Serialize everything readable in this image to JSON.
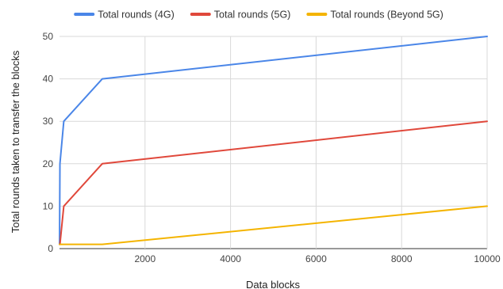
{
  "chart_data": {
    "type": "line",
    "title": "",
    "xlabel": "Data blocks",
    "ylabel": "Total rounds taken to transfer the blocks",
    "xlim": [
      0,
      10000
    ],
    "ylim": [
      0,
      50
    ],
    "x_ticks": [
      2000,
      4000,
      6000,
      8000,
      10000
    ],
    "y_ticks": [
      0,
      10,
      20,
      30,
      40,
      50
    ],
    "grid": true,
    "legend_position": "top",
    "series": [
      {
        "name": "Total rounds (4G)",
        "color": "#4a86e8",
        "x": [
          1,
          10,
          100,
          1000,
          10000
        ],
        "y": [
          1,
          20,
          30,
          40,
          50
        ]
      },
      {
        "name": "Total rounds (5G)",
        "color": "#e0483b",
        "x": [
          1,
          10,
          100,
          1000,
          10000
        ],
        "y": [
          1,
          1,
          10,
          20,
          30
        ]
      },
      {
        "name": "Total rounds (Beyond 5G)",
        "color": "#f4b400",
        "x": [
          1,
          10,
          100,
          1000,
          10000
        ],
        "y": [
          1,
          1,
          1,
          1,
          10
        ]
      }
    ]
  }
}
